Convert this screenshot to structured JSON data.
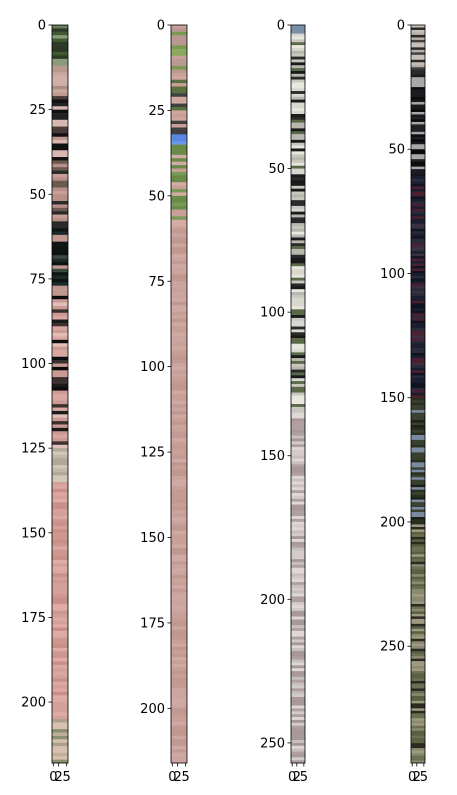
{
  "chart_data": [
    {
      "type": "heatmap",
      "title": "",
      "xlabel": "",
      "ylabel": "",
      "xlim": [
        -0.5,
        5.5
      ],
      "ylim": [
        218,
        0
      ],
      "x_ticks": [
        0,
        2,
        5
      ],
      "x_tick_labels": [
        "0",
        "2",
        "5"
      ],
      "y_ticks": [
        0,
        25,
        50,
        75,
        100,
        125,
        150,
        175,
        200
      ],
      "y_tick_labels": [
        "0",
        "25",
        "50",
        "75",
        "100",
        "125",
        "150",
        "175",
        "200"
      ],
      "bands": [
        {
          "from": 0,
          "to": 12,
          "colors": [
            "#3f5a2f",
            "#6b7d5a",
            "#2d3a2a",
            "#8a9a7a"
          ]
        },
        {
          "from": 12,
          "to": 20,
          "colors": [
            "#c8a8a0",
            "#b89a90",
            "#d0b0a8",
            "#a89080"
          ]
        },
        {
          "from": 20,
          "to": 40,
          "colors": [
            "#222222",
            "#c09890",
            "#4a3a38",
            "#d8b8b0",
            "#111111"
          ]
        },
        {
          "from": 40,
          "to": 60,
          "colors": [
            "#b89088",
            "#2a2a2a",
            "#c8a098",
            "#6a5a50"
          ]
        },
        {
          "from": 60,
          "to": 80,
          "colors": [
            "#1e2a28",
            "#3a4a40",
            "#c09890",
            "#0e1412"
          ]
        },
        {
          "from": 80,
          "to": 125,
          "colors": [
            "#cc9a94",
            "#1a1a1a",
            "#d8a8a0",
            "#3a3030",
            "#e0c0b8",
            "#0c0c0c"
          ]
        },
        {
          "from": 125,
          "to": 135,
          "colors": [
            "#c0b8a8",
            "#b0a898",
            "#d0c8b8"
          ]
        },
        {
          "from": 135,
          "to": 205,
          "colors": [
            "#d4a09a",
            "#cc9890",
            "#dca8a2",
            "#c89088",
            "#e0aca6"
          ]
        },
        {
          "from": 205,
          "to": 218,
          "colors": [
            "#c0b098",
            "#8a9070",
            "#d8c0b0",
            "#a8a088"
          ]
        }
      ]
    },
    {
      "type": "heatmap",
      "title": "",
      "xlabel": "",
      "ylabel": "",
      "xlim": [
        -0.5,
        5.5
      ],
      "ylim": [
        216,
        0
      ],
      "x_ticks": [
        0,
        2,
        5
      ],
      "x_tick_labels": [
        "0",
        "2",
        "5"
      ],
      "y_ticks": [
        0,
        25,
        50,
        75,
        100,
        125,
        150,
        175,
        200
      ],
      "y_tick_labels": [
        "0",
        "25",
        "50",
        "75",
        "100",
        "125",
        "150",
        "175",
        "200"
      ],
      "bands": [
        {
          "from": 0,
          "to": 14,
          "colors": [
            "#7a9a50",
            "#c8a098",
            "#8aa860",
            "#b89890"
          ]
        },
        {
          "from": 14,
          "to": 32,
          "colors": [
            "#c8a098",
            "#5a7040",
            "#d0a8a0",
            "#404040"
          ]
        },
        {
          "from": 32,
          "to": 35,
          "colors": [
            "#5a88e0",
            "#6a98e8"
          ]
        },
        {
          "from": 35,
          "to": 60,
          "colors": [
            "#6a8a48",
            "#c8a098",
            "#d4aca4",
            "#7a9a58"
          ]
        },
        {
          "from": 60,
          "to": 216,
          "colors": [
            "#c8a098",
            "#c49a94",
            "#cca4a0",
            "#c09890",
            "#d0a8a4"
          ]
        }
      ]
    },
    {
      "type": "heatmap",
      "title": "",
      "xlabel": "",
      "ylabel": "",
      "xlim": [
        -0.5,
        5.5
      ],
      "ylim": [
        257,
        0
      ],
      "x_ticks": [
        0,
        2,
        5
      ],
      "x_tick_labels": [
        "0",
        "2",
        "5"
      ],
      "y_ticks": [
        0,
        50,
        100,
        150,
        200,
        250
      ],
      "y_tick_labels": [
        "0",
        "50",
        "100",
        "150",
        "200",
        "250"
      ],
      "bands": [
        {
          "from": 0,
          "to": 3,
          "colors": [
            "#7a90a8",
            "#8aa0b8"
          ]
        },
        {
          "from": 3,
          "to": 135,
          "colors": [
            "#d8d8d0",
            "#1a1a1a",
            "#b8b8b0",
            "#5a6a48",
            "#e8e8e0",
            "#2a2a2a",
            "#c8c8c0"
          ]
        },
        {
          "from": 135,
          "to": 257,
          "colors": [
            "#c8c0c0",
            "#b0a0a0",
            "#d4ccc8",
            "#a89898",
            "#e0d8d4"
          ]
        }
      ]
    },
    {
      "type": "heatmap",
      "title": "",
      "xlabel": "",
      "ylabel": "",
      "xlim": [
        -0.5,
        5.5
      ],
      "ylim": [
        297,
        0
      ],
      "x_ticks": [
        0,
        2,
        5
      ],
      "x_tick_labels": [
        "0",
        "2",
        "5"
      ],
      "y_ticks": [
        0,
        50,
        100,
        150,
        200,
        250
      ],
      "y_tick_labels": [
        "0",
        "50",
        "100",
        "150",
        "200",
        "250"
      ],
      "bands": [
        {
          "from": 0,
          "to": 20,
          "colors": [
            "#b8b0a8",
            "#2a2a2a",
            "#c8c0b8",
            "#404040"
          ]
        },
        {
          "from": 20,
          "to": 60,
          "colors": [
            "#0a0a0a",
            "#1a1a20",
            "#a8a8a8",
            "#202028"
          ]
        },
        {
          "from": 60,
          "to": 150,
          "colors": [
            "#1a1e30",
            "#2a2a3a",
            "#101420",
            "#3a3040",
            "#4a2030"
          ]
        },
        {
          "from": 150,
          "to": 200,
          "colors": [
            "#2a3020",
            "#7a8aa0",
            "#3a4030",
            "#1a2018"
          ]
        },
        {
          "from": 200,
          "to": 297,
          "colors": [
            "#6a7050",
            "#8a8a70",
            "#5a6040",
            "#a09a80",
            "#2a2a20"
          ]
        }
      ]
    }
  ]
}
